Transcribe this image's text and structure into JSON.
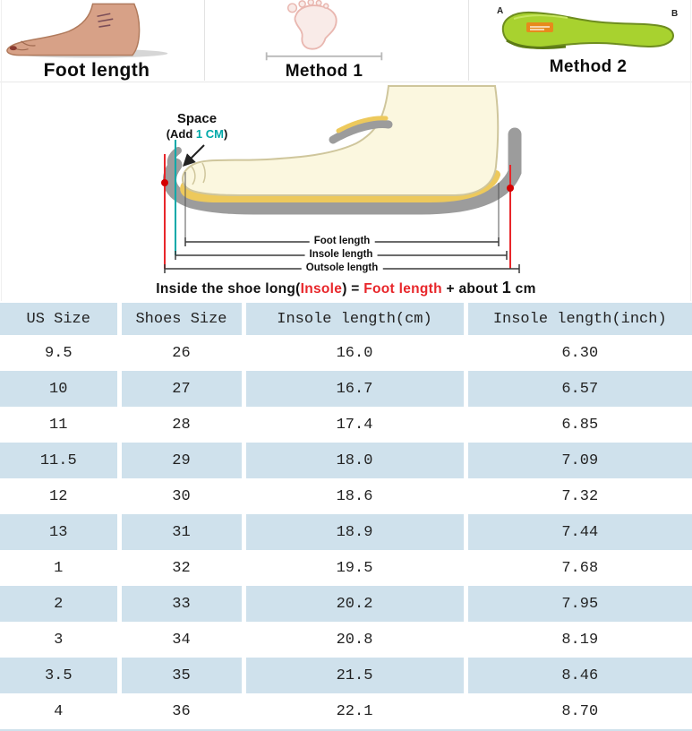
{
  "banner": {
    "foot": {
      "label": "Foot length"
    },
    "method1": {
      "label": "Method 1"
    },
    "method2": {
      "label": "Method 2",
      "point_a": "A",
      "point_b": "B"
    }
  },
  "diagram": {
    "space": {
      "title": "Space",
      "add_prefix": "(Add ",
      "add_value": "1 CM",
      "add_suffix": ")"
    },
    "measurements": {
      "foot": "Foot length",
      "insole": "Insole length",
      "outsole": "Outsole length"
    },
    "caption_segments": [
      {
        "text": "Inside the shoe long(",
        "color": "#111111"
      },
      {
        "text": "Insole",
        "color": "#e8262a"
      },
      {
        "text": ") = ",
        "color": "#111111"
      },
      {
        "text": "Foot length",
        "color": "#e8262a"
      },
      {
        "text": " + about ",
        "color": "#111111"
      },
      {
        "text": "1",
        "color": "#111111",
        "big": true
      },
      {
        "text": " cm",
        "color": "#111111"
      }
    ]
  },
  "table": {
    "headers": [
      "US Size",
      "Shoes Size",
      "Insole length(cm)",
      "Insole length(inch)"
    ],
    "rows": [
      [
        "9.5",
        "26",
        "16.0",
        "6.30"
      ],
      [
        "10",
        "27",
        "16.7",
        "6.57"
      ],
      [
        "11",
        "28",
        "17.4",
        "6.85"
      ],
      [
        "11.5",
        "29",
        "18.0",
        "7.09"
      ],
      [
        "12",
        "30",
        "18.6",
        "7.32"
      ],
      [
        "13",
        "31",
        "18.9",
        "7.44"
      ],
      [
        "1",
        "32",
        "19.5",
        "7.68"
      ],
      [
        "2",
        "33",
        "20.2",
        "7.95"
      ],
      [
        "3",
        "34",
        "20.8",
        "8.19"
      ],
      [
        "3.5",
        "35",
        "21.5",
        "8.46"
      ],
      [
        "4",
        "36",
        "22.1",
        "8.70"
      ]
    ]
  },
  "colors": {
    "row_blue": "#cfe1ec",
    "accent_red": "#e8262a",
    "accent_teal": "#00a9a9",
    "insole_green": "#a8d22f",
    "sole_gray": "#9c9c9c",
    "insole_yellow": "#edc95c"
  }
}
